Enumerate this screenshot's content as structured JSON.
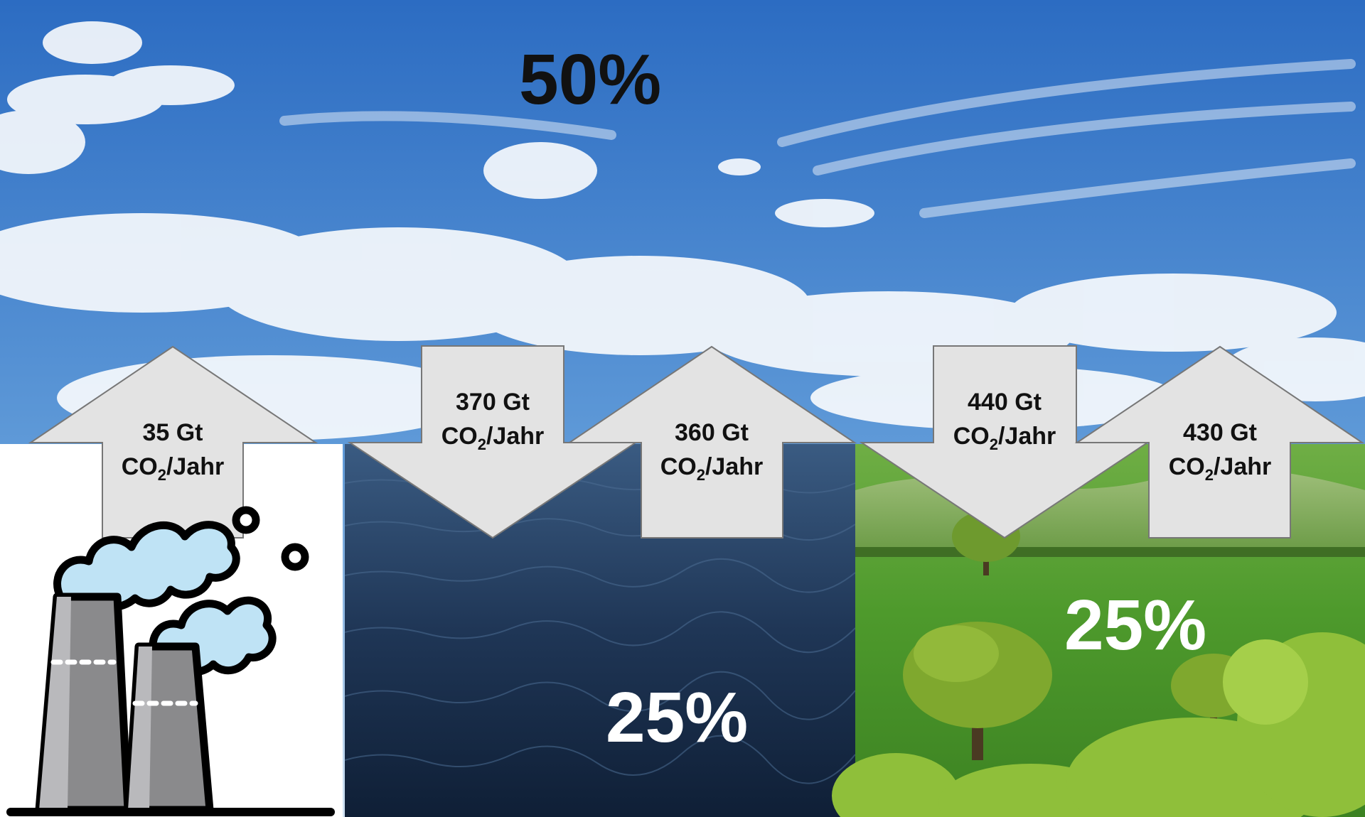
{
  "atmosphere": {
    "share_label": "50%"
  },
  "ocean": {
    "share_label": "25%"
  },
  "land": {
    "share_label": "25%"
  },
  "unit": {
    "prefix": "CO",
    "subscript": "2",
    "suffix": "/Jahr"
  },
  "flows": [
    {
      "id": "emissions-up",
      "direction": "up",
      "amount": "35 Gt"
    },
    {
      "id": "ocean-down",
      "direction": "down",
      "amount": "370 Gt"
    },
    {
      "id": "ocean-up",
      "direction": "up",
      "amount": "360 Gt"
    },
    {
      "id": "land-down",
      "direction": "down",
      "amount": "440 Gt"
    },
    {
      "id": "land-up",
      "direction": "up",
      "amount": "430 Gt"
    }
  ],
  "icons": [
    "factory-chimneys-icon",
    "smoke-cloud-icon"
  ],
  "colors": {
    "sky_top": "#2f6fc4",
    "sky_bottom": "#c9def2",
    "ocean": "#1c324f",
    "grass": "#4c9a2a",
    "arrow_fill": "#e3e3e3",
    "arrow_stroke": "#777777",
    "smoke": "#bfe3f5"
  }
}
